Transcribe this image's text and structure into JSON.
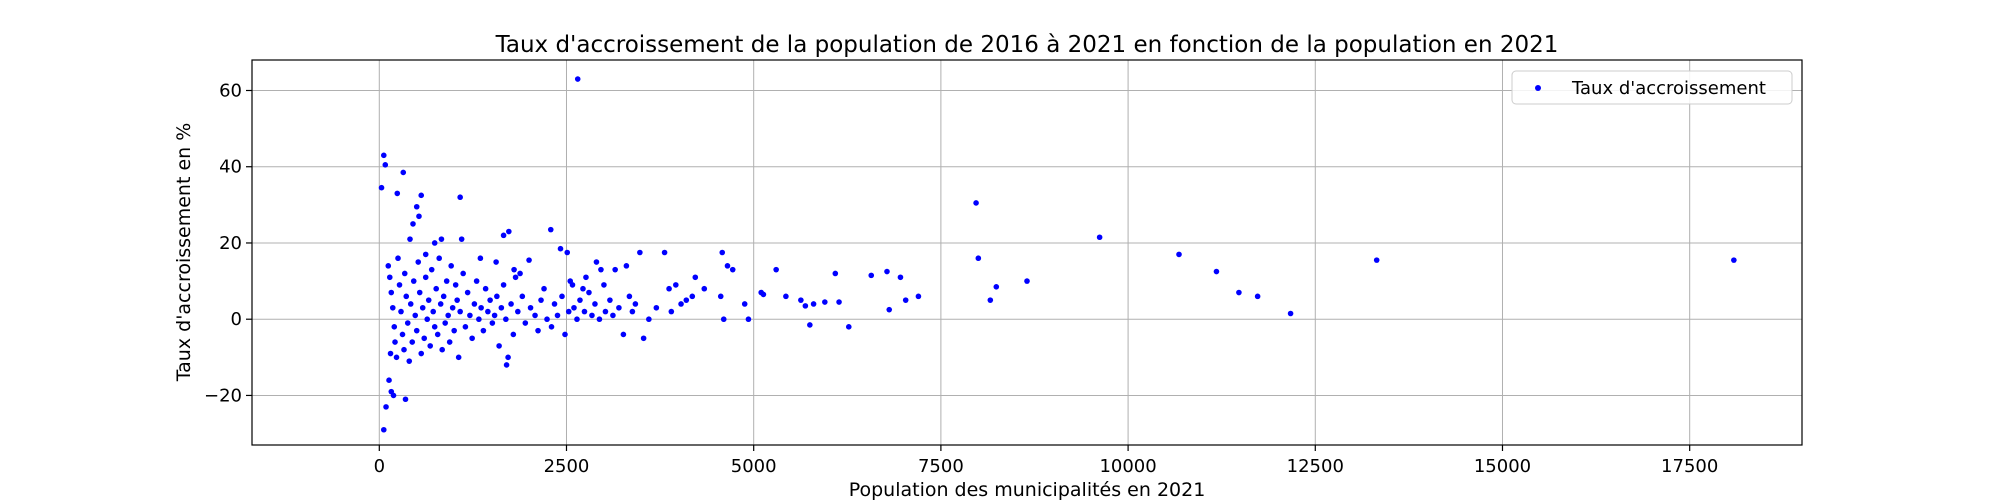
{
  "chart_data": {
    "type": "scatter",
    "title": "Taux d'accroissement de la population de 2016 à 2021 en fonction de la population en 2021",
    "xlabel": "Population des municipalités en 2021",
    "ylabel": "Taux d'accroissement en %",
    "xlim": [
      -1700,
      19000
    ],
    "ylim": [
      -33,
      68
    ],
    "xticks": [
      0,
      2500,
      5000,
      7500,
      10000,
      12500,
      15000,
      17500
    ],
    "xtick_labels": [
      "0",
      "2500",
      "5000",
      "7500",
      "10000",
      "12500",
      "15000",
      "17500"
    ],
    "yticks": [
      -20,
      0,
      20,
      40,
      60
    ],
    "ytick_labels": [
      "−20",
      "0",
      "20",
      "40",
      "60"
    ],
    "grid": true,
    "legend_position": "top-right",
    "series": [
      {
        "name": "Taux d'accroissement",
        "color": "#0000ff",
        "points": [
          {
            "x": 30,
            "y": 34.5
          },
          {
            "x": 60,
            "y": 43
          },
          {
            "x": 80,
            "y": 40.5
          },
          {
            "x": 60,
            "y": -29
          },
          {
            "x": 90,
            "y": -23
          },
          {
            "x": 130,
            "y": -16
          },
          {
            "x": 160,
            "y": -19
          },
          {
            "x": 190,
            "y": -20
          },
          {
            "x": 240,
            "y": 33
          },
          {
            "x": 320,
            "y": 38.5
          },
          {
            "x": 350,
            "y": -21
          },
          {
            "x": 410,
            "y": 21
          },
          {
            "x": 450,
            "y": 25
          },
          {
            "x": 500,
            "y": 29.5
          },
          {
            "x": 530,
            "y": 27
          },
          {
            "x": 560,
            "y": 32.5
          },
          {
            "x": 620,
            "y": 17
          },
          {
            "x": 740,
            "y": 20
          },
          {
            "x": 830,
            "y": 21
          },
          {
            "x": 1080,
            "y": 32
          },
          {
            "x": 1100,
            "y": 21
          },
          {
            "x": 1350,
            "y": 16
          },
          {
            "x": 1560,
            "y": 15
          },
          {
            "x": 1660,
            "y": 22
          },
          {
            "x": 1730,
            "y": 23
          },
          {
            "x": 1700,
            "y": -12
          },
          {
            "x": 1720,
            "y": -10
          },
          {
            "x": 1800,
            "y": 13
          },
          {
            "x": 1820,
            "y": 11
          },
          {
            "x": 1880,
            "y": 12
          },
          {
            "x": 2000,
            "y": 15.5
          },
          {
            "x": 2290,
            "y": 23.5
          },
          {
            "x": 2420,
            "y": 18.5
          },
          {
            "x": 2510,
            "y": 17.5
          },
          {
            "x": 2550,
            "y": 10
          },
          {
            "x": 2580,
            "y": 9
          },
          {
            "x": 2650,
            "y": 63
          },
          {
            "x": 2720,
            "y": 8
          },
          {
            "x": 2760,
            "y": 11
          },
          {
            "x": 2900,
            "y": 15
          },
          {
            "x": 2960,
            "y": 13
          },
          {
            "x": 3000,
            "y": 9
          },
          {
            "x": 3150,
            "y": 13
          },
          {
            "x": 3300,
            "y": 14
          },
          {
            "x": 3420,
            "y": 4
          },
          {
            "x": 3480,
            "y": 17.5
          },
          {
            "x": 3530,
            "y": -5
          },
          {
            "x": 3600,
            "y": 0
          },
          {
            "x": 3810,
            "y": 17.5
          },
          {
            "x": 3870,
            "y": 8
          },
          {
            "x": 3960,
            "y": 9
          },
          {
            "x": 4030,
            "y": 4
          },
          {
            "x": 4100,
            "y": 5
          },
          {
            "x": 4220,
            "y": 11
          },
          {
            "x": 4340,
            "y": 8
          },
          {
            "x": 4560,
            "y": 6
          },
          {
            "x": 4580,
            "y": 17.5
          },
          {
            "x": 4600,
            "y": 0
          },
          {
            "x": 4650,
            "y": 14
          },
          {
            "x": 4720,
            "y": 13
          },
          {
            "x": 4880,
            "y": 4
          },
          {
            "x": 4930,
            "y": 0
          },
          {
            "x": 5100,
            "y": 7
          },
          {
            "x": 5130,
            "y": 6.5
          },
          {
            "x": 5300,
            "y": 13
          },
          {
            "x": 5430,
            "y": 6
          },
          {
            "x": 5630,
            "y": 5
          },
          {
            "x": 5690,
            "y": 3.5
          },
          {
            "x": 5750,
            "y": -1.5
          },
          {
            "x": 5800,
            "y": 4
          },
          {
            "x": 5950,
            "y": 4.5
          },
          {
            "x": 6090,
            "y": 12
          },
          {
            "x": 6140,
            "y": 4.5
          },
          {
            "x": 6270,
            "y": -2
          },
          {
            "x": 6570,
            "y": 11.5
          },
          {
            "x": 6780,
            "y": 12.5
          },
          {
            "x": 6810,
            "y": 2.5
          },
          {
            "x": 6960,
            "y": 11
          },
          {
            "x": 7030,
            "y": 5
          },
          {
            "x": 7200,
            "y": 6
          },
          {
            "x": 7970,
            "y": 30.5
          },
          {
            "x": 8000,
            "y": 16
          },
          {
            "x": 8160,
            "y": 5
          },
          {
            "x": 8240,
            "y": 8.5
          },
          {
            "x": 8650,
            "y": 10
          },
          {
            "x": 9620,
            "y": 21.5
          },
          {
            "x": 10680,
            "y": 17
          },
          {
            "x": 11180,
            "y": 12.5
          },
          {
            "x": 11480,
            "y": 7
          },
          {
            "x": 11730,
            "y": 6
          },
          {
            "x": 12170,
            "y": 1.5
          },
          {
            "x": 13320,
            "y": 15.5
          },
          {
            "x": 18090,
            "y": 15.5
          },
          {
            "x": 120,
            "y": 14
          },
          {
            "x": 140,
            "y": 11
          },
          {
            "x": 160,
            "y": 7
          },
          {
            "x": 180,
            "y": 3
          },
          {
            "x": 200,
            "y": -2
          },
          {
            "x": 210,
            "y": -6
          },
          {
            "x": 150,
            "y": -9
          },
          {
            "x": 230,
            "y": -10
          },
          {
            "x": 250,
            "y": 16
          },
          {
            "x": 270,
            "y": 9
          },
          {
            "x": 290,
            "y": 2
          },
          {
            "x": 310,
            "y": -4
          },
          {
            "x": 330,
            "y": -8
          },
          {
            "x": 340,
            "y": 12
          },
          {
            "x": 360,
            "y": 6
          },
          {
            "x": 380,
            "y": -1
          },
          {
            "x": 400,
            "y": -11
          },
          {
            "x": 420,
            "y": 4
          },
          {
            "x": 440,
            "y": -6
          },
          {
            "x": 460,
            "y": 10
          },
          {
            "x": 480,
            "y": 1
          },
          {
            "x": 500,
            "y": -3
          },
          {
            "x": 520,
            "y": 15
          },
          {
            "x": 540,
            "y": 7
          },
          {
            "x": 560,
            "y": -9
          },
          {
            "x": 580,
            "y": 3
          },
          {
            "x": 600,
            "y": -5
          },
          {
            "x": 620,
            "y": 11
          },
          {
            "x": 640,
            "y": 0
          },
          {
            "x": 660,
            "y": 5
          },
          {
            "x": 680,
            "y": -7
          },
          {
            "x": 700,
            "y": 13
          },
          {
            "x": 720,
            "y": 2
          },
          {
            "x": 740,
            "y": -2
          },
          {
            "x": 760,
            "y": 8
          },
          {
            "x": 780,
            "y": -4
          },
          {
            "x": 800,
            "y": 16
          },
          {
            "x": 820,
            "y": 4
          },
          {
            "x": 840,
            "y": -8
          },
          {
            "x": 860,
            "y": 6
          },
          {
            "x": 880,
            "y": -1
          },
          {
            "x": 900,
            "y": 10
          },
          {
            "x": 920,
            "y": 1
          },
          {
            "x": 940,
            "y": -6
          },
          {
            "x": 960,
            "y": 14
          },
          {
            "x": 980,
            "y": 3
          },
          {
            "x": 1000,
            "y": -3
          },
          {
            "x": 1020,
            "y": 9
          },
          {
            "x": 1040,
            "y": 5
          },
          {
            "x": 1060,
            "y": -10
          },
          {
            "x": 1080,
            "y": 2
          },
          {
            "x": 1120,
            "y": 12
          },
          {
            "x": 1150,
            "y": -2
          },
          {
            "x": 1180,
            "y": 7
          },
          {
            "x": 1210,
            "y": 1
          },
          {
            "x": 1240,
            "y": -5
          },
          {
            "x": 1270,
            "y": 4
          },
          {
            "x": 1300,
            "y": 10
          },
          {
            "x": 1330,
            "y": 0
          },
          {
            "x": 1360,
            "y": 3
          },
          {
            "x": 1390,
            "y": -3
          },
          {
            "x": 1420,
            "y": 8
          },
          {
            "x": 1450,
            "y": 2
          },
          {
            "x": 1480,
            "y": 5
          },
          {
            "x": 1510,
            "y": -1
          },
          {
            "x": 1540,
            "y": 1
          },
          {
            "x": 1570,
            "y": 6
          },
          {
            "x": 1600,
            "y": -7
          },
          {
            "x": 1630,
            "y": 3
          },
          {
            "x": 1660,
            "y": 9
          },
          {
            "x": 1690,
            "y": 0
          },
          {
            "x": 1760,
            "y": 4
          },
          {
            "x": 1790,
            "y": -4
          },
          {
            "x": 1850,
            "y": 2
          },
          {
            "x": 1910,
            "y": 6
          },
          {
            "x": 1950,
            "y": -1
          },
          {
            "x": 2020,
            "y": 3
          },
          {
            "x": 2080,
            "y": 1
          },
          {
            "x": 2120,
            "y": -3
          },
          {
            "x": 2160,
            "y": 5
          },
          {
            "x": 2200,
            "y": 8
          },
          {
            "x": 2240,
            "y": 0
          },
          {
            "x": 2300,
            "y": -2
          },
          {
            "x": 2340,
            "y": 4
          },
          {
            "x": 2380,
            "y": 1
          },
          {
            "x": 2440,
            "y": 6
          },
          {
            "x": 2480,
            "y": -4
          },
          {
            "x": 2530,
            "y": 2
          },
          {
            "x": 2600,
            "y": 3
          },
          {
            "x": 2640,
            "y": 0
          },
          {
            "x": 2680,
            "y": 5
          },
          {
            "x": 2740,
            "y": 2
          },
          {
            "x": 2800,
            "y": 7
          },
          {
            "x": 2840,
            "y": 1
          },
          {
            "x": 2880,
            "y": 4
          },
          {
            "x": 2940,
            "y": 0
          },
          {
            "x": 3020,
            "y": 2
          },
          {
            "x": 3080,
            "y": 5
          },
          {
            "x": 3120,
            "y": 1
          },
          {
            "x": 3200,
            "y": 3
          },
          {
            "x": 3260,
            "y": -4
          },
          {
            "x": 3340,
            "y": 6
          },
          {
            "x": 3380,
            "y": 2
          },
          {
            "x": 3700,
            "y": 3
          },
          {
            "x": 3900,
            "y": 2
          },
          {
            "x": 4180,
            "y": 6
          }
        ]
      }
    ]
  }
}
